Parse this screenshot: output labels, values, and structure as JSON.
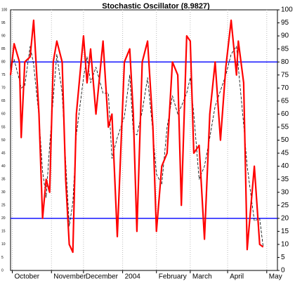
{
  "chart_data": {
    "type": "line",
    "title": "Stochastic Oscillator (8.9827)",
    "x": [
      0,
      2,
      5,
      6,
      8,
      11,
      13,
      16,
      18,
      20,
      22,
      24,
      26,
      29,
      31,
      33,
      35,
      37,
      41,
      43,
      45,
      48,
      52,
      55,
      57,
      60,
      64,
      67,
      69,
      71,
      74,
      77,
      80,
      82,
      85,
      88,
      91,
      94,
      96,
      99,
      101,
      103,
      106,
      109,
      112,
      115,
      118,
      121,
      124,
      127,
      128,
      131,
      133,
      137,
      140,
      142
    ],
    "series": [
      {
        "color": "#ff0000",
        "dashed": false,
        "values": [
          75,
          87,
          80,
          51,
          80,
          82,
          96,
          60,
          20,
          35,
          30,
          80,
          88,
          80,
          35,
          10,
          7,
          60,
          90,
          72,
          85,
          60,
          88,
          55,
          60,
          13,
          80,
          85,
          60,
          15,
          80,
          88,
          55,
          15,
          40,
          45,
          80,
          75,
          25,
          90,
          88,
          45,
          48,
          12,
          60,
          80,
          50,
          78,
          96,
          75,
          88,
          72,
          8,
          40,
          10,
          9
        ]
      },
      {
        "color": "#000000",
        "dashed": true,
        "values": [
          78,
          81,
          73,
          70,
          71,
          86,
          79,
          59,
          38,
          28,
          48,
          66,
          83,
          68,
          42,
          17,
          26,
          52,
          74,
          82,
          72,
          78,
          68,
          68,
          43,
          51,
          59,
          75,
          53,
          52,
          61,
          74,
          53,
          37,
          33,
          55,
          67,
          60,
          63,
          68,
          74,
          60,
          35,
          40,
          51,
          63,
          69,
          75,
          83,
          86,
          78,
          56,
          40,
          19,
          20,
          9
        ]
      }
    ],
    "xlim": [
      0,
      150
    ],
    "xticks": [
      {
        "value": 1,
        "label": "October"
      },
      {
        "value": 23,
        "label": "November"
      },
      {
        "value": 41,
        "label": "December"
      },
      {
        "value": 63,
        "label": "2004"
      },
      {
        "value": 82,
        "label": "February"
      },
      {
        "value": 101,
        "label": "March"
      },
      {
        "value": 122,
        "label": "April"
      },
      {
        "value": 144,
        "label": "May"
      }
    ],
    "ylim": [
      0,
      100
    ],
    "yticks": [
      0,
      5,
      10,
      15,
      20,
      25,
      30,
      35,
      40,
      45,
      50,
      55,
      60,
      65,
      70,
      75,
      80,
      85,
      90,
      95,
      100
    ],
    "hlines": [
      20,
      80
    ],
    "hline_color": "#0000ff",
    "grid": true
  }
}
